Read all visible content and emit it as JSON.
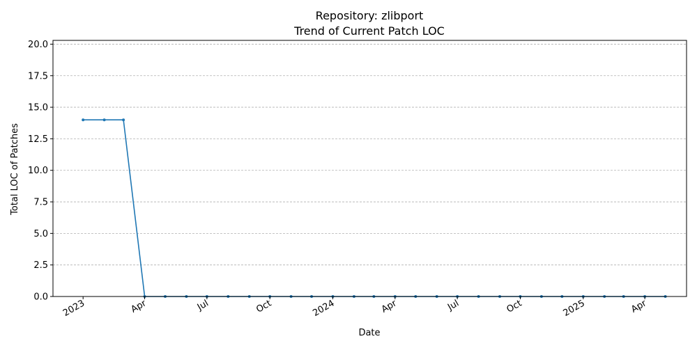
{
  "chart_data": {
    "type": "line",
    "title": "Repository: zlibport",
    "subtitle": "Trend of Current Patch LOC",
    "xlabel": "Date",
    "ylabel": "Total LOC of Patches",
    "ylim": [
      0,
      20.3
    ],
    "xlim": [
      "2022-11-18",
      "2025-06-01"
    ],
    "grid": "y",
    "line_color": "#1f77b4",
    "y_ticks": [
      {
        "value": 0,
        "label": "0.0"
      },
      {
        "value": 2.5,
        "label": "2.5"
      },
      {
        "value": 5,
        "label": "5.0"
      },
      {
        "value": 7.5,
        "label": "7.5"
      },
      {
        "value": 10,
        "label": "10.0"
      },
      {
        "value": 12.5,
        "label": "12.5"
      },
      {
        "value": 15,
        "label": "15.0"
      },
      {
        "value": 17.5,
        "label": "17.5"
      },
      {
        "value": 20,
        "label": "20.0"
      }
    ],
    "x_ticks": [
      {
        "date": "2023-01-01",
        "label": "2023"
      },
      {
        "date": "2023-04-01",
        "label": "Apr"
      },
      {
        "date": "2023-07-01",
        "label": "Jul"
      },
      {
        "date": "2023-10-01",
        "label": "Oct"
      },
      {
        "date": "2024-01-01",
        "label": "2024"
      },
      {
        "date": "2024-04-01",
        "label": "Apr"
      },
      {
        "date": "2024-07-01",
        "label": "Jul"
      },
      {
        "date": "2024-10-01",
        "label": "Oct"
      },
      {
        "date": "2025-01-01",
        "label": "2025"
      },
      {
        "date": "2025-04-01",
        "label": "Apr"
      }
    ],
    "series": [
      {
        "points": [
          {
            "x": "2023-01-01",
            "y": 14
          },
          {
            "x": "2023-02-01",
            "y": 14
          },
          {
            "x": "2023-03-01",
            "y": 14
          },
          {
            "x": "2023-04-01",
            "y": 0
          },
          {
            "x": "2023-05-01",
            "y": 0
          },
          {
            "x": "2023-06-01",
            "y": 0
          },
          {
            "x": "2023-07-01",
            "y": 0
          },
          {
            "x": "2023-08-01",
            "y": 0
          },
          {
            "x": "2023-09-01",
            "y": 0
          },
          {
            "x": "2023-10-01",
            "y": 0
          },
          {
            "x": "2023-11-01",
            "y": 0
          },
          {
            "x": "2023-12-01",
            "y": 0
          },
          {
            "x": "2024-01-01",
            "y": 0
          },
          {
            "x": "2024-02-01",
            "y": 0
          },
          {
            "x": "2024-03-01",
            "y": 0
          },
          {
            "x": "2024-04-01",
            "y": 0
          },
          {
            "x": "2024-05-01",
            "y": 0
          },
          {
            "x": "2024-06-01",
            "y": 0
          },
          {
            "x": "2024-07-01",
            "y": 0
          },
          {
            "x": "2024-08-01",
            "y": 0
          },
          {
            "x": "2024-09-01",
            "y": 0
          },
          {
            "x": "2024-10-01",
            "y": 0
          },
          {
            "x": "2024-11-01",
            "y": 0
          },
          {
            "x": "2024-12-01",
            "y": 0
          },
          {
            "x": "2025-01-01",
            "y": 0
          },
          {
            "x": "2025-02-01",
            "y": 0
          },
          {
            "x": "2025-03-01",
            "y": 0
          },
          {
            "x": "2025-04-01",
            "y": 0
          },
          {
            "x": "2025-05-01",
            "y": 0
          }
        ]
      }
    ]
  }
}
